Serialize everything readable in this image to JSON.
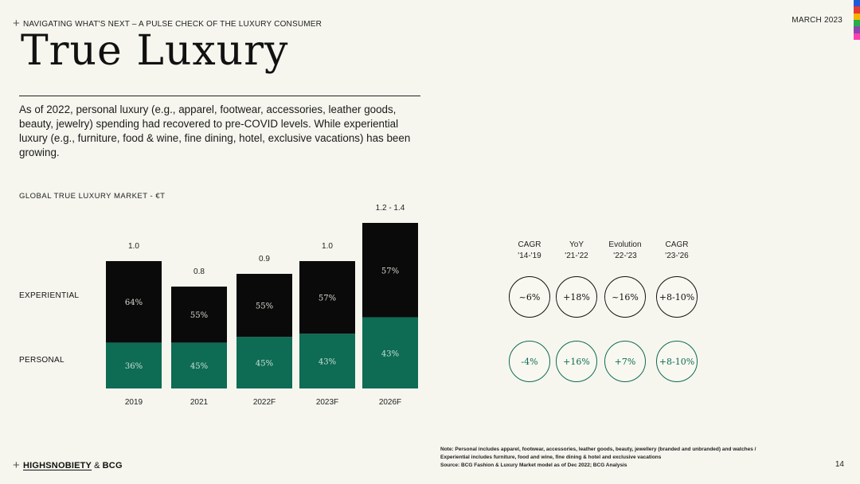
{
  "header": {
    "left_text": "NAVIGATING WHAT'S NEXT – A PULSE CHECK OF THE LUXURY CONSUMER",
    "right_text": "MARCH 2023"
  },
  "color_strip": [
    "#1e5bd8",
    "#e53935",
    "#f5b400",
    "#21b04b",
    "#8e44ad",
    "#ff3fb0"
  ],
  "title": "True Luxury",
  "intro": "As of 2022, personal luxury (e.g., apparel, footwear, accessories, leather goods, beauty, jewelry) spending had recovered to pre-COVID levels. While experiential luxury (e.g., furniture, food & wine, fine dining, hotel, exclusive vacations) has been growing.",
  "chart_title": "GLOBAL TRUE LUXURY MARKET - €T",
  "row_labels": {
    "experiential": "EXPERIENTIAL",
    "personal": "PERSONAL"
  },
  "colors": {
    "experiential": "#0a0a0a",
    "personal": "#0e6b54",
    "background": "#f6f6ee"
  },
  "chart_data": {
    "type": "bar",
    "stacked": true,
    "title": "GLOBAL TRUE LUXURY MARKET - €T",
    "categories": [
      "2019",
      "2021",
      "2022F",
      "2023F",
      "2026F"
    ],
    "totals": [
      1.0,
      0.8,
      0.9,
      1.0,
      1.3
    ],
    "total_labels": [
      "1.0",
      "0.8",
      "0.9",
      "1.0",
      "1.2 - 1.4"
    ],
    "series": [
      {
        "name": "PERSONAL",
        "share_labels": [
          "36%",
          "45%",
          "45%",
          "43%",
          "43%"
        ],
        "shares": [
          36,
          45,
          45,
          43,
          43
        ]
      },
      {
        "name": "EXPERIENTIAL",
        "share_labels": [
          "64%",
          "55%",
          "55%",
          "57%",
          "57%"
        ],
        "shares": [
          64,
          55,
          55,
          57,
          57
        ]
      }
    ]
  },
  "metrics": {
    "headers": [
      {
        "line1": "CAGR",
        "line2": "'14-'19"
      },
      {
        "line1": "YoY",
        "line2": "'21-'22"
      },
      {
        "line1": "Evolution",
        "line2": "'22-'23"
      },
      {
        "line1": "CAGR",
        "line2": "'23-'26"
      }
    ],
    "experiential": [
      "~6%",
      "+18%",
      "~16%",
      "+8-10%"
    ],
    "personal": [
      "-4%",
      "+16%",
      "+7%",
      "+8-10%"
    ]
  },
  "footer": {
    "brand1": "HIGHSNOBIETY",
    "amp": "&",
    "brand2": "BCG",
    "notes": [
      "Note: Personal includes apparel, footwear, accessories, leather goods, beauty, jewellery (branded and unbranded) and watches /",
      "Experiential includes furniture, food and wine, fine dining & hotel and exclusive vacations",
      "Source: BCG Fashion & Luxury Market model as of Dec 2022; BCG Analysis"
    ],
    "page_number": "14"
  }
}
